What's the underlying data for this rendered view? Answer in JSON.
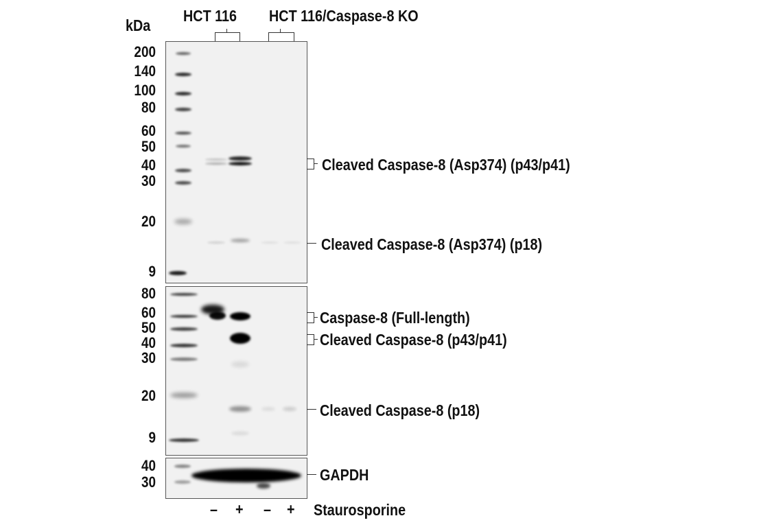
{
  "header": {
    "unit": "kDa",
    "group1": "HCT 116",
    "group2": "HCT 116/Caspase-8 KO"
  },
  "panel1": {
    "markers": [
      "200",
      "140",
      "100",
      "80",
      "60",
      "50",
      "40",
      "30",
      "20",
      "9"
    ],
    "labels": [
      "Cleaved Caspase-8 (Asp374) (p43/p41)",
      "Cleaved Caspase-8 (Asp374) (p18)"
    ]
  },
  "panel2": {
    "markers": [
      "80",
      "60",
      "50",
      "40",
      "30",
      "20",
      "9"
    ],
    "labels": [
      "Caspase-8 (Full-length)",
      "Cleaved Caspase-8 (p43/p41)",
      "Cleaved Caspase-8 (p18)"
    ]
  },
  "panel3": {
    "markers": [
      "40",
      "30"
    ],
    "labels": [
      "GAPDH"
    ]
  },
  "treatment": {
    "lanes": [
      "–",
      "+",
      "–",
      "+"
    ],
    "label": "Staurosporine"
  }
}
